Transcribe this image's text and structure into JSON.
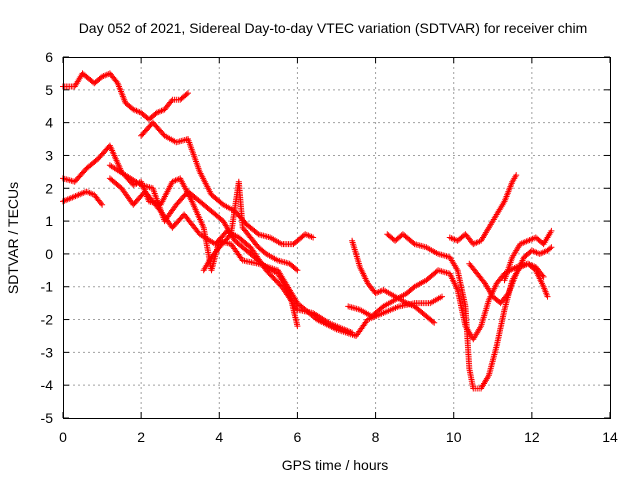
{
  "chart_data": {
    "type": "scatter",
    "title": "Day 052 of 2021, Sidereal Day-to-day VTEC variation (SDTVAR) for receiver chim",
    "xlabel": "GPS time / hours",
    "ylabel": "SDTVAR / TECUs",
    "xlim": [
      0,
      14
    ],
    "ylim": [
      -5,
      6
    ],
    "xticks": [
      "0",
      "2",
      "4",
      "6",
      "8",
      "10",
      "12",
      "14"
    ],
    "yticks": [
      "6",
      "5",
      "4",
      "3",
      "2",
      "1",
      "0",
      "-1",
      "-2",
      "-3",
      "-4",
      "-5"
    ],
    "grid": true,
    "marker": "+",
    "color": "#ff0000",
    "series": [
      {
        "points": [
          [
            0.0,
            5.1
          ],
          [
            0.3,
            5.1
          ],
          [
            0.5,
            5.5
          ],
          [
            0.8,
            5.2
          ],
          [
            1.0,
            5.4
          ],
          [
            1.2,
            5.5
          ],
          [
            1.4,
            5.2
          ],
          [
            1.6,
            4.6
          ],
          [
            1.8,
            4.4
          ],
          [
            2.0,
            4.3
          ],
          [
            2.2,
            4.1
          ],
          [
            2.4,
            4.3
          ],
          [
            2.6,
            4.4
          ],
          [
            2.8,
            4.7
          ],
          [
            3.0,
            4.7
          ],
          [
            3.2,
            4.9
          ]
        ]
      },
      {
        "points": [
          [
            0.0,
            1.6
          ],
          [
            0.2,
            1.7
          ],
          [
            0.4,
            1.8
          ],
          [
            0.6,
            1.9
          ],
          [
            0.8,
            1.8
          ],
          [
            1.0,
            1.5
          ]
        ]
      },
      {
        "points": [
          [
            0.0,
            2.3
          ],
          [
            0.3,
            2.2
          ],
          [
            0.6,
            2.6
          ],
          [
            0.9,
            2.9
          ],
          [
            1.2,
            3.3
          ],
          [
            1.5,
            2.5
          ],
          [
            1.8,
            2.1
          ],
          [
            2.0,
            2.2
          ],
          [
            2.2,
            1.6
          ],
          [
            2.5,
            1.5
          ],
          [
            2.8,
            2.2
          ],
          [
            3.0,
            2.3
          ],
          [
            3.3,
            1.6
          ],
          [
            3.6,
            0.8
          ],
          [
            3.8,
            -0.5
          ],
          [
            4.0,
            0.4
          ],
          [
            4.3,
            0.3
          ],
          [
            4.6,
            -0.2
          ],
          [
            5.0,
            -0.3
          ],
          [
            5.5,
            -0.5
          ],
          [
            6.0,
            -1.5
          ],
          [
            6.5,
            -2.0
          ],
          [
            7.0,
            -2.3
          ],
          [
            7.5,
            -2.5
          ],
          [
            7.8,
            -2.0
          ],
          [
            8.2,
            -1.8
          ],
          [
            8.6,
            -1.6
          ],
          [
            9.0,
            -1.5
          ],
          [
            9.4,
            -1.5
          ],
          [
            9.7,
            -1.3
          ]
        ]
      },
      {
        "points": [
          [
            1.2,
            2.3
          ],
          [
            1.5,
            2.0
          ],
          [
            1.8,
            1.5
          ],
          [
            2.1,
            1.9
          ],
          [
            2.5,
            1.3
          ],
          [
            2.8,
            0.8
          ],
          [
            3.1,
            1.2
          ],
          [
            3.5,
            0.6
          ],
          [
            3.9,
            0.3
          ],
          [
            4.2,
            0.7
          ],
          [
            4.5,
            0.5
          ],
          [
            4.8,
            0.2
          ],
          [
            5.2,
            -0.5
          ],
          [
            5.6,
            -1.0
          ],
          [
            6.0,
            -1.7
          ],
          [
            6.4,
            -1.8
          ],
          [
            6.8,
            -2.1
          ],
          [
            7.2,
            -2.3
          ],
          [
            7.4,
            -2.4
          ]
        ]
      },
      {
        "points": [
          [
            1.2,
            2.7
          ],
          [
            1.6,
            2.4
          ],
          [
            2.0,
            2.1
          ],
          [
            2.3,
            2.0
          ],
          [
            2.6,
            1.0
          ],
          [
            2.9,
            1.5
          ],
          [
            3.2,
            1.9
          ],
          [
            3.5,
            1.6
          ],
          [
            3.8,
            1.3
          ],
          [
            4.1,
            1.0
          ],
          [
            4.4,
            0.4
          ],
          [
            4.6,
            0.2
          ],
          [
            4.9,
            -0.1
          ],
          [
            5.2,
            -0.4
          ],
          [
            5.5,
            -0.6
          ],
          [
            5.8,
            -1.2
          ],
          [
            6.0,
            -2.2
          ]
        ]
      },
      {
        "points": [
          [
            2.0,
            3.6
          ],
          [
            2.3,
            4.0
          ],
          [
            2.6,
            3.6
          ],
          [
            2.9,
            3.4
          ],
          [
            3.2,
            3.5
          ],
          [
            3.5,
            2.5
          ],
          [
            3.8,
            1.8
          ],
          [
            4.1,
            1.5
          ],
          [
            4.4,
            1.3
          ],
          [
            4.7,
            0.9
          ],
          [
            5.0,
            0.6
          ],
          [
            5.3,
            0.5
          ],
          [
            5.6,
            0.3
          ],
          [
            5.9,
            0.3
          ],
          [
            6.2,
            0.6
          ],
          [
            6.4,
            0.5
          ]
        ]
      },
      {
        "points": [
          [
            3.6,
            -0.5
          ],
          [
            3.8,
            -0.1
          ],
          [
            4.0,
            0.2
          ],
          [
            4.3,
            0.6
          ],
          [
            4.5,
            2.2
          ],
          [
            4.6,
            0.8
          ],
          [
            4.8,
            0.5
          ],
          [
            5.0,
            0.2
          ],
          [
            5.2,
            0.0
          ],
          [
            5.5,
            -0.2
          ],
          [
            5.8,
            -0.3
          ],
          [
            6.0,
            -0.5
          ]
        ]
      },
      {
        "points": [
          [
            7.4,
            0.4
          ],
          [
            7.6,
            -0.4
          ],
          [
            7.8,
            -0.9
          ],
          [
            8.0,
            -1.2
          ],
          [
            8.2,
            -1.1
          ],
          [
            8.5,
            -1.3
          ],
          [
            8.8,
            -1.5
          ],
          [
            9.0,
            -1.6
          ],
          [
            9.2,
            -1.8
          ],
          [
            9.5,
            -2.1
          ]
        ]
      },
      {
        "points": [
          [
            7.3,
            -1.6
          ],
          [
            7.6,
            -1.7
          ],
          [
            7.9,
            -1.9
          ],
          [
            8.2,
            -1.6
          ],
          [
            8.5,
            -1.4
          ],
          [
            8.8,
            -1.2
          ],
          [
            9.0,
            -1.0
          ],
          [
            9.3,
            -0.8
          ],
          [
            9.6,
            -0.5
          ],
          [
            9.9,
            -0.6
          ],
          [
            10.1,
            -1.1
          ],
          [
            10.3,
            -2.2
          ],
          [
            10.5,
            -2.6
          ],
          [
            10.7,
            -2.2
          ],
          [
            10.9,
            -1.4
          ],
          [
            11.1,
            -0.9
          ],
          [
            11.3,
            -0.6
          ],
          [
            11.6,
            -0.4
          ],
          [
            11.9,
            -0.3
          ],
          [
            12.1,
            -0.4
          ],
          [
            12.3,
            -0.7
          ]
        ]
      },
      {
        "points": [
          [
            8.3,
            0.6
          ],
          [
            8.5,
            0.4
          ],
          [
            8.7,
            0.6
          ],
          [
            9.0,
            0.3
          ],
          [
            9.3,
            0.2
          ],
          [
            9.6,
            0.0
          ],
          [
            9.9,
            -0.1
          ],
          [
            10.1,
            -0.5
          ],
          [
            10.3,
            -1.6
          ],
          [
            10.4,
            -3.5
          ],
          [
            10.5,
            -4.1
          ],
          [
            10.7,
            -4.1
          ],
          [
            10.9,
            -3.7
          ],
          [
            11.1,
            -2.8
          ],
          [
            11.3,
            -1.7
          ],
          [
            11.5,
            -0.8
          ],
          [
            11.7,
            -0.4
          ],
          [
            11.9,
            -0.3
          ],
          [
            12.1,
            -0.5
          ],
          [
            12.3,
            -1.0
          ],
          [
            12.4,
            -1.3
          ]
        ]
      },
      {
        "points": [
          [
            9.9,
            0.5
          ],
          [
            10.1,
            0.4
          ],
          [
            10.3,
            0.6
          ],
          [
            10.5,
            0.3
          ],
          [
            10.7,
            0.4
          ],
          [
            10.9,
            0.8
          ],
          [
            11.1,
            1.2
          ],
          [
            11.3,
            1.6
          ],
          [
            11.5,
            2.2
          ],
          [
            11.6,
            2.4
          ]
        ]
      },
      {
        "points": [
          [
            10.4,
            -0.3
          ],
          [
            10.6,
            -0.6
          ],
          [
            10.8,
            -0.9
          ],
          [
            11.0,
            -1.3
          ],
          [
            11.2,
            -1.5
          ],
          [
            11.4,
            -1.2
          ],
          [
            11.6,
            -0.6
          ],
          [
            11.8,
            -0.1
          ],
          [
            12.0,
            0.1
          ],
          [
            12.2,
            0.0
          ],
          [
            12.4,
            0.1
          ],
          [
            12.5,
            0.2
          ]
        ]
      },
      {
        "points": [
          [
            11.3,
            -0.8
          ],
          [
            11.5,
            -0.1
          ],
          [
            11.7,
            0.3
          ],
          [
            11.9,
            0.4
          ],
          [
            12.1,
            0.5
          ],
          [
            12.3,
            0.3
          ],
          [
            12.5,
            0.7
          ]
        ]
      }
    ]
  }
}
